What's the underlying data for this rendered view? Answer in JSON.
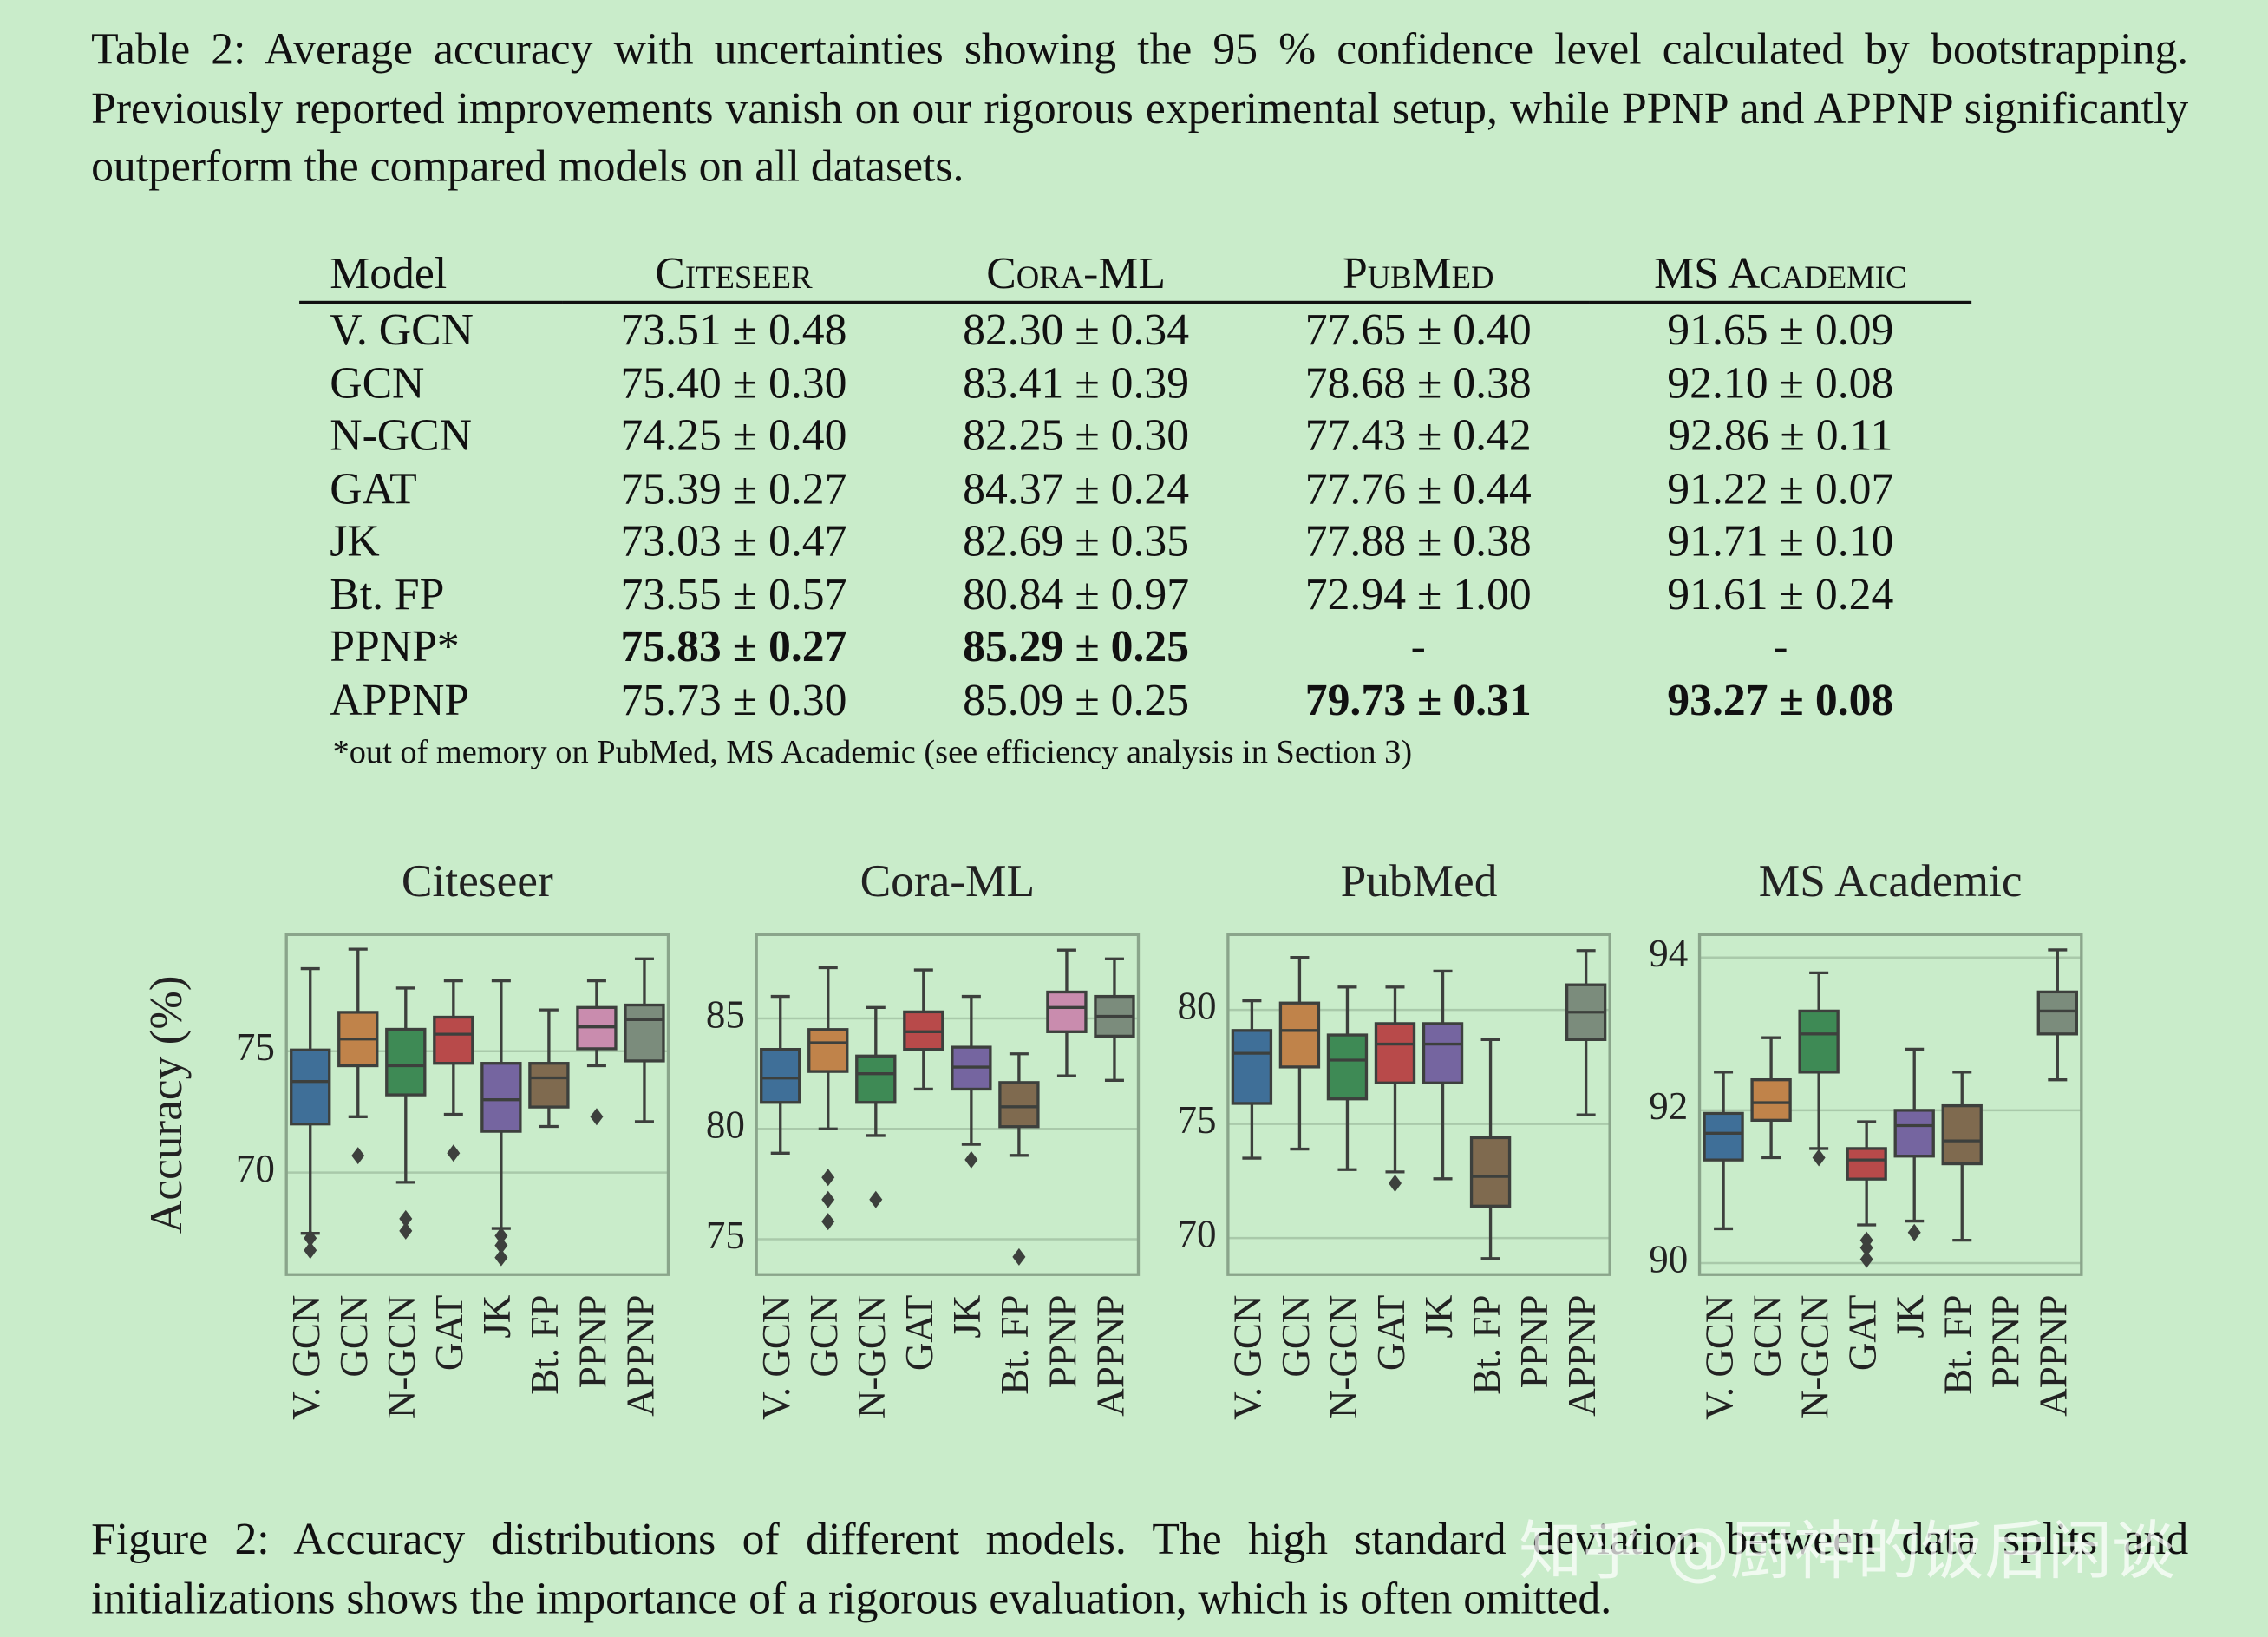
{
  "table_caption": "Table 2: Average accuracy with uncertainties showing the 95 % confidence level calculated by bootstrapping. Previously reported improvements vanish on our rigorous experimental setup, while PPNP and APPNP significantly outperform the compared models on all datasets.",
  "table": {
    "header": [
      "Model",
      "Citeseer",
      "Cora-ML",
      "PubMed",
      "MS Academic"
    ],
    "rows": [
      [
        "V. GCN",
        "73.51 ± 0.48",
        "82.30 ± 0.34",
        "77.65 ± 0.40",
        "91.65 ± 0.09"
      ],
      [
        "GCN",
        "75.40 ± 0.30",
        "83.41 ± 0.39",
        "78.68 ± 0.38",
        "92.10 ± 0.08"
      ],
      [
        "N-GCN",
        "74.25 ± 0.40",
        "82.25 ± 0.30",
        "77.43 ± 0.42",
        "92.86 ± 0.11"
      ],
      [
        "GAT",
        "75.39 ± 0.27",
        "84.37 ± 0.24",
        "77.76 ± 0.44",
        "91.22 ± 0.07"
      ],
      [
        "JK",
        "73.03 ± 0.47",
        "82.69 ± 0.35",
        "77.88 ± 0.38",
        "91.71 ± 0.10"
      ],
      [
        "Bt. FP",
        "73.55 ± 0.57",
        "80.84 ± 0.97",
        "72.94 ± 1.00",
        "91.61 ± 0.24"
      ],
      [
        "PPNP*",
        "75.83 ± 0.27",
        "85.29 ± 0.25",
        "-",
        "-"
      ],
      [
        "APPNP",
        "75.73 ± 0.30",
        "85.09 ± 0.25",
        "79.73 ± 0.31",
        "93.27 ± 0.08"
      ]
    ],
    "bold": [
      [
        6,
        1
      ],
      [
        6,
        2
      ],
      [
        7,
        3
      ],
      [
        7,
        4
      ]
    ],
    "footnote": "*out of memory on PubMed, MS Academic (see efficiency analysis in Section 3)"
  },
  "chart_data": [
    {
      "type": "box",
      "title": "Citeseer",
      "ylabel": "Accuracy (%)",
      "grid": true,
      "categories": [
        "V. GCN",
        "GCN",
        "N-GCN",
        "GAT",
        "JK",
        "Bt. FP",
        "PPNP",
        "APPNP"
      ],
      "colors": [
        "#3f6f98",
        "#c0834a",
        "#3e8a55",
        "#b84a4a",
        "#7565a0",
        "#7f6a4f",
        "#c98cae",
        "#7b8c7c"
      ],
      "ylim": [
        65.8,
        79.8
      ],
      "yticks": [
        70,
        75
      ],
      "boxes": [
        {
          "min": 67.5,
          "q1": 72.0,
          "median": 73.75,
          "q3": 75.05,
          "max": 78.4,
          "outliers": [
            67.3,
            66.8
          ]
        },
        {
          "min": 72.3,
          "q1": 74.4,
          "median": 75.5,
          "q3": 76.6,
          "max": 79.2,
          "outliers": [
            70.7
          ]
        },
        {
          "min": 69.6,
          "q1": 73.2,
          "median": 74.4,
          "q3": 75.9,
          "max": 77.6,
          "outliers": [
            68.1,
            67.6
          ]
        },
        {
          "min": 72.4,
          "q1": 74.5,
          "median": 75.7,
          "q3": 76.4,
          "max": 77.9,
          "outliers": [
            70.8
          ]
        },
        {
          "min": 67.7,
          "q1": 71.7,
          "median": 73.0,
          "q3": 74.5,
          "max": 77.9,
          "outliers": [
            67.4,
            67.0,
            66.5
          ]
        },
        {
          "min": 71.9,
          "q1": 72.7,
          "median": 73.9,
          "q3": 74.5,
          "max": 76.7,
          "outliers": []
        },
        {
          "min": 74.4,
          "q1": 75.1,
          "median": 76.0,
          "q3": 76.8,
          "max": 77.9,
          "outliers": [
            72.3
          ]
        },
        {
          "min": 72.1,
          "q1": 74.6,
          "median": 76.3,
          "q3": 76.9,
          "max": 78.8,
          "outliers": []
        }
      ]
    },
    {
      "type": "box",
      "title": "Cora-ML",
      "grid": true,
      "categories": [
        "V. GCN",
        "GCN",
        "N-GCN",
        "GAT",
        "JK",
        "Bt. FP",
        "PPNP",
        "APPNP"
      ],
      "colors": [
        "#3f6f98",
        "#c0834a",
        "#3e8a55",
        "#b84a4a",
        "#7565a0",
        "#7f6a4f",
        "#c98cae",
        "#7b8c7c"
      ],
      "ylim": [
        73.4,
        88.8
      ],
      "yticks": [
        75,
        80,
        85
      ],
      "boxes": [
        {
          "min": 78.9,
          "q1": 81.2,
          "median": 82.3,
          "q3": 83.6,
          "max": 86.0,
          "outliers": []
        },
        {
          "min": 80.0,
          "q1": 82.6,
          "median": 83.9,
          "q3": 84.5,
          "max": 87.3,
          "outliers": [
            77.8,
            76.8,
            75.8
          ]
        },
        {
          "min": 79.7,
          "q1": 81.2,
          "median": 82.5,
          "q3": 83.3,
          "max": 85.5,
          "outliers": [
            76.8
          ]
        },
        {
          "min": 81.8,
          "q1": 83.6,
          "median": 84.4,
          "q3": 85.3,
          "max": 87.2,
          "outliers": []
        },
        {
          "min": 79.3,
          "q1": 81.8,
          "median": 82.8,
          "q3": 83.7,
          "max": 86.0,
          "outliers": [
            78.6
          ]
        },
        {
          "min": 78.8,
          "q1": 80.1,
          "median": 81.0,
          "q3": 82.1,
          "max": 83.4,
          "outliers": [
            74.2
          ]
        },
        {
          "min": 82.4,
          "q1": 84.4,
          "median": 85.5,
          "q3": 86.2,
          "max": 88.1,
          "outliers": []
        },
        {
          "min": 82.2,
          "q1": 84.2,
          "median": 85.1,
          "q3": 86.0,
          "max": 87.7,
          "outliers": []
        }
      ]
    },
    {
      "type": "box",
      "title": "PubMed",
      "grid": true,
      "categories": [
        "V. GCN",
        "GCN",
        "N-GCN",
        "GAT",
        "JK",
        "Bt. FP",
        "PPNP",
        "APPNP"
      ],
      "colors": [
        "#3f6f98",
        "#c0834a",
        "#3e8a55",
        "#b84a4a",
        "#7565a0",
        "#7f6a4f",
        "#c98cae",
        "#7b8c7c"
      ],
      "ylim": [
        68.4,
        83.3
      ],
      "yticks": [
        70,
        75,
        80
      ],
      "boxes": [
        {
          "min": 73.5,
          "q1": 75.9,
          "median": 78.1,
          "q3": 79.1,
          "max": 80.4,
          "outliers": []
        },
        {
          "min": 73.9,
          "q1": 77.5,
          "median": 79.1,
          "q3": 80.3,
          "max": 82.3,
          "outliers": []
        },
        {
          "min": 73.0,
          "q1": 76.1,
          "median": 77.8,
          "q3": 78.9,
          "max": 81.0,
          "outliers": []
        },
        {
          "min": 72.9,
          "q1": 76.8,
          "median": 78.5,
          "q3": 79.4,
          "max": 81.0,
          "outliers": [
            72.4
          ]
        },
        {
          "min": 72.6,
          "q1": 76.8,
          "median": 78.5,
          "q3": 79.4,
          "max": 81.7,
          "outliers": []
        },
        {
          "min": 69.1,
          "q1": 71.4,
          "median": 72.7,
          "q3": 74.4,
          "max": 78.7,
          "outliers": []
        },
        null,
        {
          "min": 75.4,
          "q1": 78.7,
          "median": 79.9,
          "q3": 81.1,
          "max": 82.6,
          "outliers": []
        }
      ]
    },
    {
      "type": "box",
      "title": "MS Academic",
      "grid": true,
      "categories": [
        "V. GCN",
        "GCN",
        "N-GCN",
        "GAT",
        "JK",
        "Bt. FP",
        "PPNP",
        "APPNP"
      ],
      "colors": [
        "#3f6f98",
        "#c0834a",
        "#3e8a55",
        "#b84a4a",
        "#7565a0",
        "#7f6a4f",
        "#c98cae",
        "#7b8c7c"
      ],
      "ylim": [
        89.85,
        94.3
      ],
      "yticks": [
        90,
        92,
        94
      ],
      "boxes": [
        {
          "min": 90.45,
          "q1": 91.35,
          "median": 91.7,
          "q3": 91.96,
          "max": 92.5,
          "outliers": []
        },
        {
          "min": 91.38,
          "q1": 91.87,
          "median": 92.1,
          "q3": 92.4,
          "max": 92.95,
          "outliers": []
        },
        {
          "min": 91.5,
          "q1": 92.5,
          "median": 93.0,
          "q3": 93.3,
          "max": 93.8,
          "outliers": [
            91.38
          ]
        },
        {
          "min": 90.5,
          "q1": 91.1,
          "median": 91.35,
          "q3": 91.5,
          "max": 91.85,
          "outliers": [
            90.3,
            90.2,
            90.05
          ]
        },
        {
          "min": 90.55,
          "q1": 91.4,
          "median": 91.8,
          "q3": 92.0,
          "max": 92.8,
          "outliers": [
            90.4
          ]
        },
        {
          "min": 90.3,
          "q1": 91.3,
          "median": 91.6,
          "q3": 92.06,
          "max": 92.5,
          "outliers": []
        },
        null,
        {
          "min": 92.4,
          "q1": 93.0,
          "median": 93.3,
          "q3": 93.55,
          "max": 94.1,
          "outliers": []
        }
      ]
    }
  ],
  "figure_caption": "Figure 2: Accuracy distributions of different models. The high standard deviation between data splits and initializations shows the importance of a rigorous evaluation, which is often omitted.",
  "watermark": "知乎 @厨神的饭后闲谈"
}
